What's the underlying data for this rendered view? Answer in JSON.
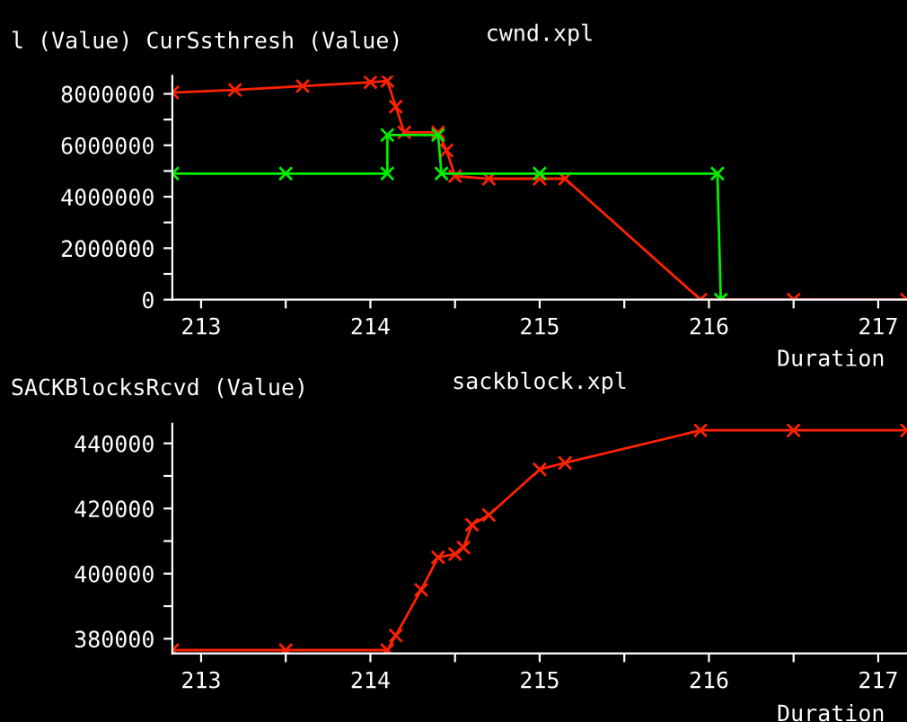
{
  "chart_data": [
    {
      "type": "line",
      "title": "cwnd.xpl",
      "ylabel": "l (Value) CurSsthresh (Value)",
      "xlabel": "Duration",
      "marker": "cross",
      "grid": false,
      "xlim": [
        212.83,
        217.17
      ],
      "xticks": [
        213,
        {
          "value": 213.5,
          "label": null
        },
        214,
        {
          "value": 214.5,
          "label": null
        },
        215,
        {
          "value": 215.5,
          "label": null
        },
        216,
        {
          "value": 216.5,
          "label": null
        },
        217
      ],
      "ylim": [
        0,
        8700000
      ],
      "yticks": [
        0,
        {
          "value": 1000000,
          "label": null
        },
        2000000,
        {
          "value": 3000000,
          "label": null
        },
        4000000,
        {
          "value": 5000000,
          "label": null
        },
        6000000,
        {
          "value": 7000000,
          "label": null
        },
        8000000
      ],
      "series": [
        {
          "color": "#ff2200",
          "x": [
            212.83,
            213.2,
            213.6,
            214.0,
            214.1,
            214.15,
            214.2,
            214.4,
            214.45,
            214.5,
            214.7,
            215.0,
            215.15,
            215.95,
            216.5,
            217.17
          ],
          "values": [
            8050000,
            8150000,
            8300000,
            8450000,
            8500000,
            7500000,
            6500000,
            6500000,
            5800000,
            4800000,
            4700000,
            4700000,
            4700000,
            0,
            0,
            0
          ]
        },
        {
          "color": "#00ee00",
          "x": [
            212.83,
            213.5,
            214.1,
            214.1,
            214.4,
            214.42,
            215.0,
            216.05,
            216.07
          ],
          "values": [
            4900000,
            4900000,
            4900000,
            6400000,
            6400000,
            4900000,
            4900000,
            4900000,
            0
          ]
        }
      ]
    },
    {
      "type": "line",
      "title": "sackblock.xpl",
      "ylabel": "SACKBlocksRcvd (Value)",
      "xlabel": "Duration",
      "marker": "cross",
      "grid": false,
      "xlim": [
        212.83,
        217.17
      ],
      "xticks": [
        213,
        {
          "value": 213.5,
          "label": null
        },
        214,
        {
          "value": 214.5,
          "label": null
        },
        215,
        {
          "value": 215.5,
          "label": null
        },
        216,
        {
          "value": 216.5,
          "label": null
        },
        217
      ],
      "ylim": [
        375500,
        446000
      ],
      "yticks": [
        380000,
        {
          "value": 390000,
          "label": null
        },
        400000,
        {
          "value": 410000,
          "label": null
        },
        420000,
        {
          "value": 430000,
          "label": null
        },
        440000
      ],
      "series": [
        {
          "color": "#ff2200",
          "x": [
            212.83,
            213.5,
            214.1,
            214.15,
            214.3,
            214.4,
            214.5,
            214.55,
            214.6,
            214.7,
            215.0,
            215.15,
            215.95,
            216.5,
            217.17
          ],
          "values": [
            376500,
            376500,
            376500,
            381000,
            395000,
            405000,
            406000,
            408000,
            415000,
            418000,
            432000,
            434000,
            444000,
            444000,
            444000
          ]
        }
      ]
    }
  ]
}
